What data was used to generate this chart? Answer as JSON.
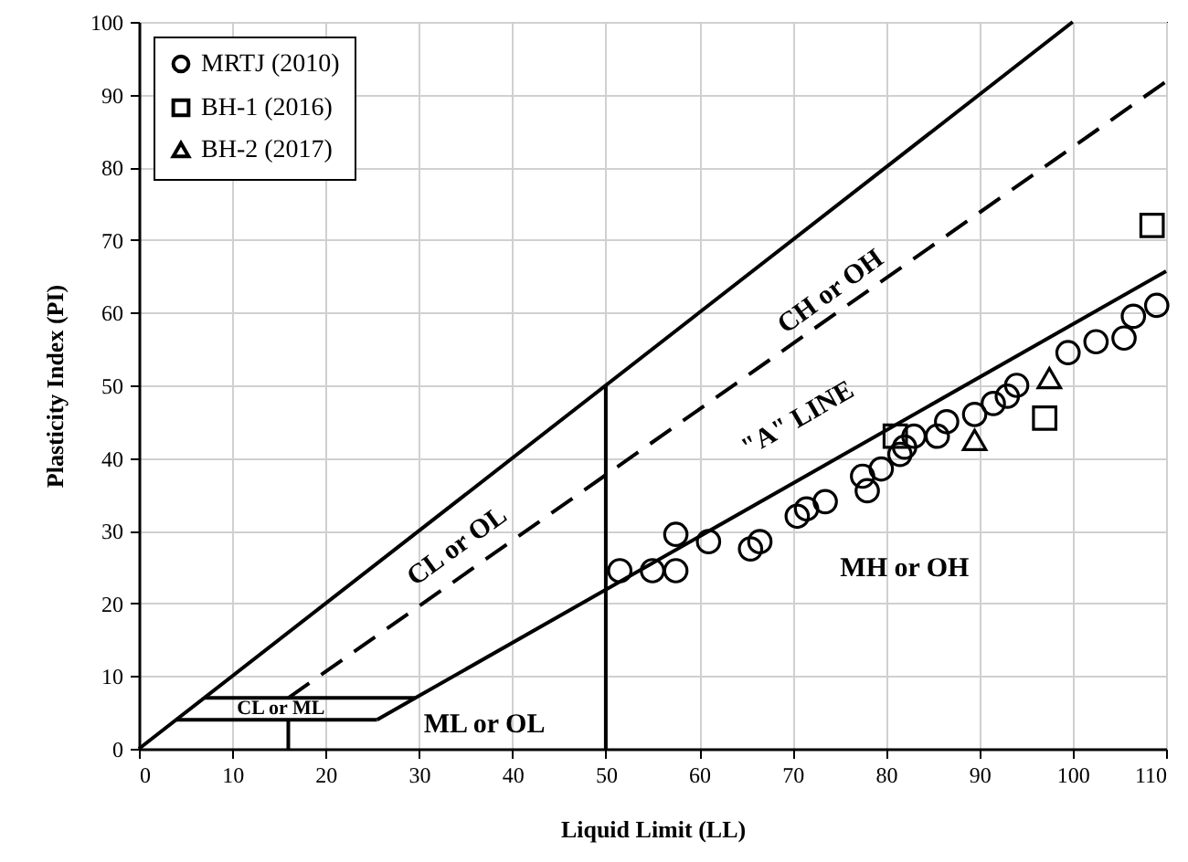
{
  "chart_data": {
    "type": "scatter",
    "xlabel": "Liquid Limit (LL)",
    "ylabel": "Plasticity Index (PI)",
    "xlim": [
      0,
      110
    ],
    "ylim": [
      0,
      100
    ],
    "xticks": [
      0,
      10,
      20,
      30,
      40,
      50,
      60,
      70,
      80,
      90,
      100,
      110
    ],
    "yticks": [
      0,
      10,
      20,
      30,
      40,
      50,
      60,
      70,
      80,
      90,
      100
    ],
    "grid": true,
    "legend": "top left",
    "series": [
      {
        "name": "MRTJ (2010)",
        "marker": "circle",
        "color": "#000000",
        "x": [
          51.5,
          55,
          57.5,
          57.5,
          61,
          65.5,
          66.5,
          70.5,
          71.5,
          73.5,
          77.5,
          78,
          79.5,
          81.5,
          82,
          83,
          85.5,
          86.5,
          89.5,
          91.5,
          93,
          94,
          99.5,
          102.5,
          105.5,
          106.5,
          109
        ],
        "values": [
          24.5,
          24.5,
          24.5,
          29.5,
          28.5,
          27.5,
          28.5,
          32,
          33,
          34,
          37.5,
          35.5,
          38.5,
          40.5,
          41.5,
          43,
          43,
          45,
          46,
          47.5,
          48.5,
          50,
          54.5,
          56,
          56.5,
          59.5,
          61
        ]
      },
      {
        "name": "BH-1 (2016)",
        "marker": "square",
        "color": "#000000",
        "x": [
          81,
          97,
          108.5
        ],
        "values": [
          43,
          45.5,
          72
        ]
      },
      {
        "name": "BH-2 (2017)",
        "marker": "triangle",
        "color": "#000000",
        "x": [
          89.5,
          97.5
        ],
        "values": [
          42.5,
          51
        ]
      },
      {
        "type": "line",
        "line_style": "solid",
        "color": "#000000",
        "x": [
          0,
          100
        ],
        "values": [
          0,
          100
        ]
      },
      {
        "type": "line",
        "line_style": "dashed",
        "color": "#000000",
        "x": [
          16,
          110
        ],
        "values": [
          7,
          91.8
        ]
      },
      {
        "type": "line",
        "line_style": "solid",
        "color": "#000000",
        "x": [
          25.5,
          110
        ],
        "values": [
          4,
          65.7
        ]
      },
      {
        "type": "line",
        "line_style": "solid",
        "color": "#000000",
        "x": [
          7,
          29.6
        ],
        "values": [
          7,
          7
        ]
      },
      {
        "type": "line",
        "line_style": "solid",
        "color": "#000000",
        "x": [
          4,
          25.5
        ],
        "values": [
          4,
          4
        ]
      },
      {
        "type": "line",
        "line_style": "solid",
        "color": "#000000",
        "x": [
          50,
          50
        ],
        "values": [
          0,
          50
        ]
      },
      {
        "type": "line",
        "line_style": "solid",
        "color": "#000000",
        "x": [
          16,
          16
        ],
        "values": [
          0,
          4
        ]
      }
    ],
    "annotations": [
      "CH or OH",
      "CL or OL",
      "\"A\" LINE",
      "MH or OH",
      "ML or OL",
      "CL or ML"
    ]
  }
}
